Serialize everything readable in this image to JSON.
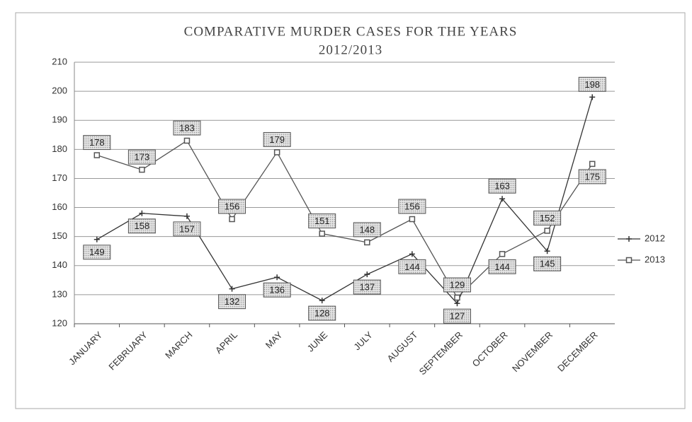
{
  "chart_data": {
    "type": "line",
    "title": [
      "COMPARATIVE MURDER CASES FOR THE YEARS",
      "2012/2013"
    ],
    "categories": [
      "JANUARY",
      "FEBRUARY",
      "MARCH",
      "APRIL",
      "MAY",
      "JUNE",
      "JULY",
      "AUGUST",
      "SEPTEMBER",
      "OCTOBER",
      "NOVEMBER",
      "DECEMBER"
    ],
    "series": [
      {
        "name": "2012",
        "color": "#333333",
        "marker": "cross",
        "values": [
          149,
          158,
          157,
          132,
          136,
          128,
          137,
          144,
          127,
          163,
          145,
          198
        ]
      },
      {
        "name": "2013",
        "color": "#555555",
        "marker": "square",
        "values": [
          178,
          173,
          183,
          156,
          179,
          151,
          148,
          156,
          129,
          144,
          152,
          175
        ]
      }
    ],
    "ylim": [
      120,
      210
    ],
    "yticks": [
      120,
      130,
      140,
      150,
      160,
      170,
      180,
      190,
      200,
      210
    ],
    "grid": true,
    "legend": "right"
  }
}
